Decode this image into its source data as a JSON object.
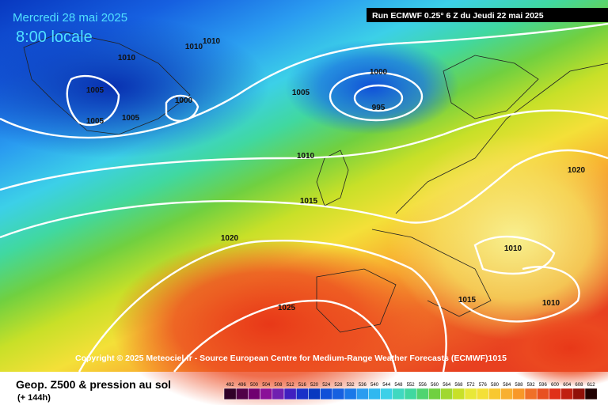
{
  "header": {
    "date": "Mercredi 28 mai 2025",
    "time": "8:00 locale",
    "run": "Run ECMWF 0.25° 6 Z du Jeudi 22 mai 2025"
  },
  "map": {
    "isobar_labels": [
      "1010",
      "1010",
      "1010",
      "1005",
      "1005",
      "1005",
      "1000",
      "1005",
      "1000",
      "995",
      "1010",
      "1015",
      "1020",
      "1025",
      "1020",
      "1010",
      "1015",
      "1010"
    ],
    "copyright": "Copyright © 2025 Meteociel.fr - Source European Centre for Medium-Range Weather Forecasts (ECMWF)1015"
  },
  "footer": {
    "title": "Geop. Z500 & pression au sol",
    "lead": "(+ 144h)",
    "scale": [
      "492",
      "496",
      "500",
      "504",
      "508",
      "512",
      "516",
      "520",
      "524",
      "528",
      "532",
      "536",
      "540",
      "544",
      "548",
      "552",
      "556",
      "560",
      "564",
      "568",
      "572",
      "576",
      "580",
      "584",
      "588",
      "592",
      "596",
      "600",
      "604",
      "608",
      "612"
    ]
  }
}
